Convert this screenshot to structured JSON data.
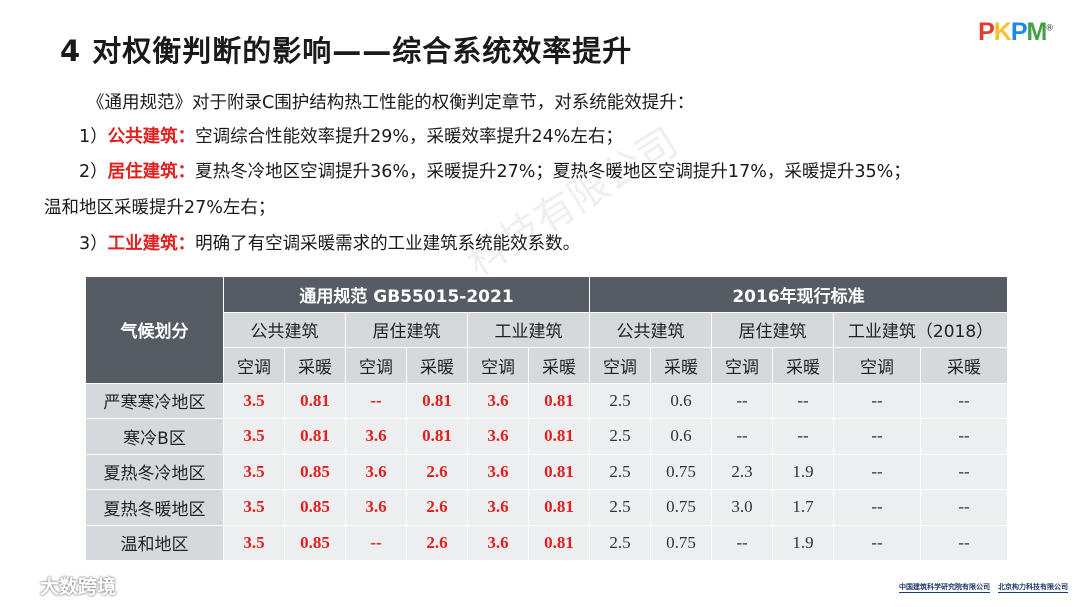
{
  "title": "4  对权衡判断的影响——综合系统效率提升",
  "logo": {
    "p": "P",
    "k": "K",
    "d": "P",
    "m": "M",
    "reg": "®"
  },
  "intro": "《通用规范》对于附录C围护结构热工性能的权衡判定章节，对系统能效提升：",
  "items": [
    {
      "num": "1）",
      "label": "公共建筑：",
      "text": "空调综合性能效率提升29%，采暖效率提升24%左右；"
    },
    {
      "num": "2）",
      "label": "居住建筑：",
      "text": "夏热冬冷地区空调提升36%，采暖提升27%；夏热冬暖地区空调提升17%，采暖提升35%；"
    },
    {
      "num": "3）",
      "label": "工业建筑：",
      "text": "明确了有空调采暖需求的工业建筑系统能效系数。"
    }
  ],
  "item2_cont": "温和地区采暖提升27%左右；",
  "watermark": "科技有限公司",
  "table": {
    "zone_header": "气候划分",
    "group_new": "通用规范 GB55015-2021",
    "group_old": "2016年现行标准",
    "types": [
      "公共建筑",
      "居住建筑",
      "工业建筑",
      "公共建筑",
      "居住建筑",
      "工业建筑（2018）"
    ],
    "subs": [
      "空调",
      "采暖",
      "空调",
      "采暖",
      "空调",
      "采暖",
      "空调",
      "采暖",
      "空调",
      "采暖",
      "空调",
      "采暖"
    ],
    "rows": [
      {
        "zone": "严寒寒冷地区",
        "values": [
          "3.5",
          "0.81",
          "--",
          "0.81",
          "3.6",
          "0.81",
          "2.5",
          "0.6",
          "--",
          "--",
          "--",
          "--"
        ]
      },
      {
        "zone": "寒冷B区",
        "values": [
          "3.5",
          "0.81",
          "3.6",
          "0.81",
          "3.6",
          "0.81",
          "2.5",
          "0.6",
          "--",
          "--",
          "--",
          "--"
        ]
      },
      {
        "zone": "夏热冬冷地区",
        "values": [
          "3.5",
          "0.85",
          "3.6",
          "2.6",
          "3.6",
          "0.81",
          "2.5",
          "0.75",
          "2.3",
          "1.9",
          "--",
          "--"
        ]
      },
      {
        "zone": "夏热冬暖地区",
        "values": [
          "3.5",
          "0.85",
          "3.6",
          "2.6",
          "3.6",
          "0.81",
          "2.5",
          "0.75",
          "3.0",
          "1.7",
          "--",
          "--"
        ]
      },
      {
        "zone": "温和地区",
        "values": [
          "3.5",
          "0.85",
          "--",
          "2.6",
          "3.6",
          "0.81",
          "2.5",
          "0.75",
          "--",
          "1.9",
          "--",
          "--"
        ]
      }
    ]
  },
  "footer": {
    "left": "大数跨境",
    "org1": "中国建筑科学研究院有限公司",
    "org2": "北京构力科技有限公司"
  }
}
